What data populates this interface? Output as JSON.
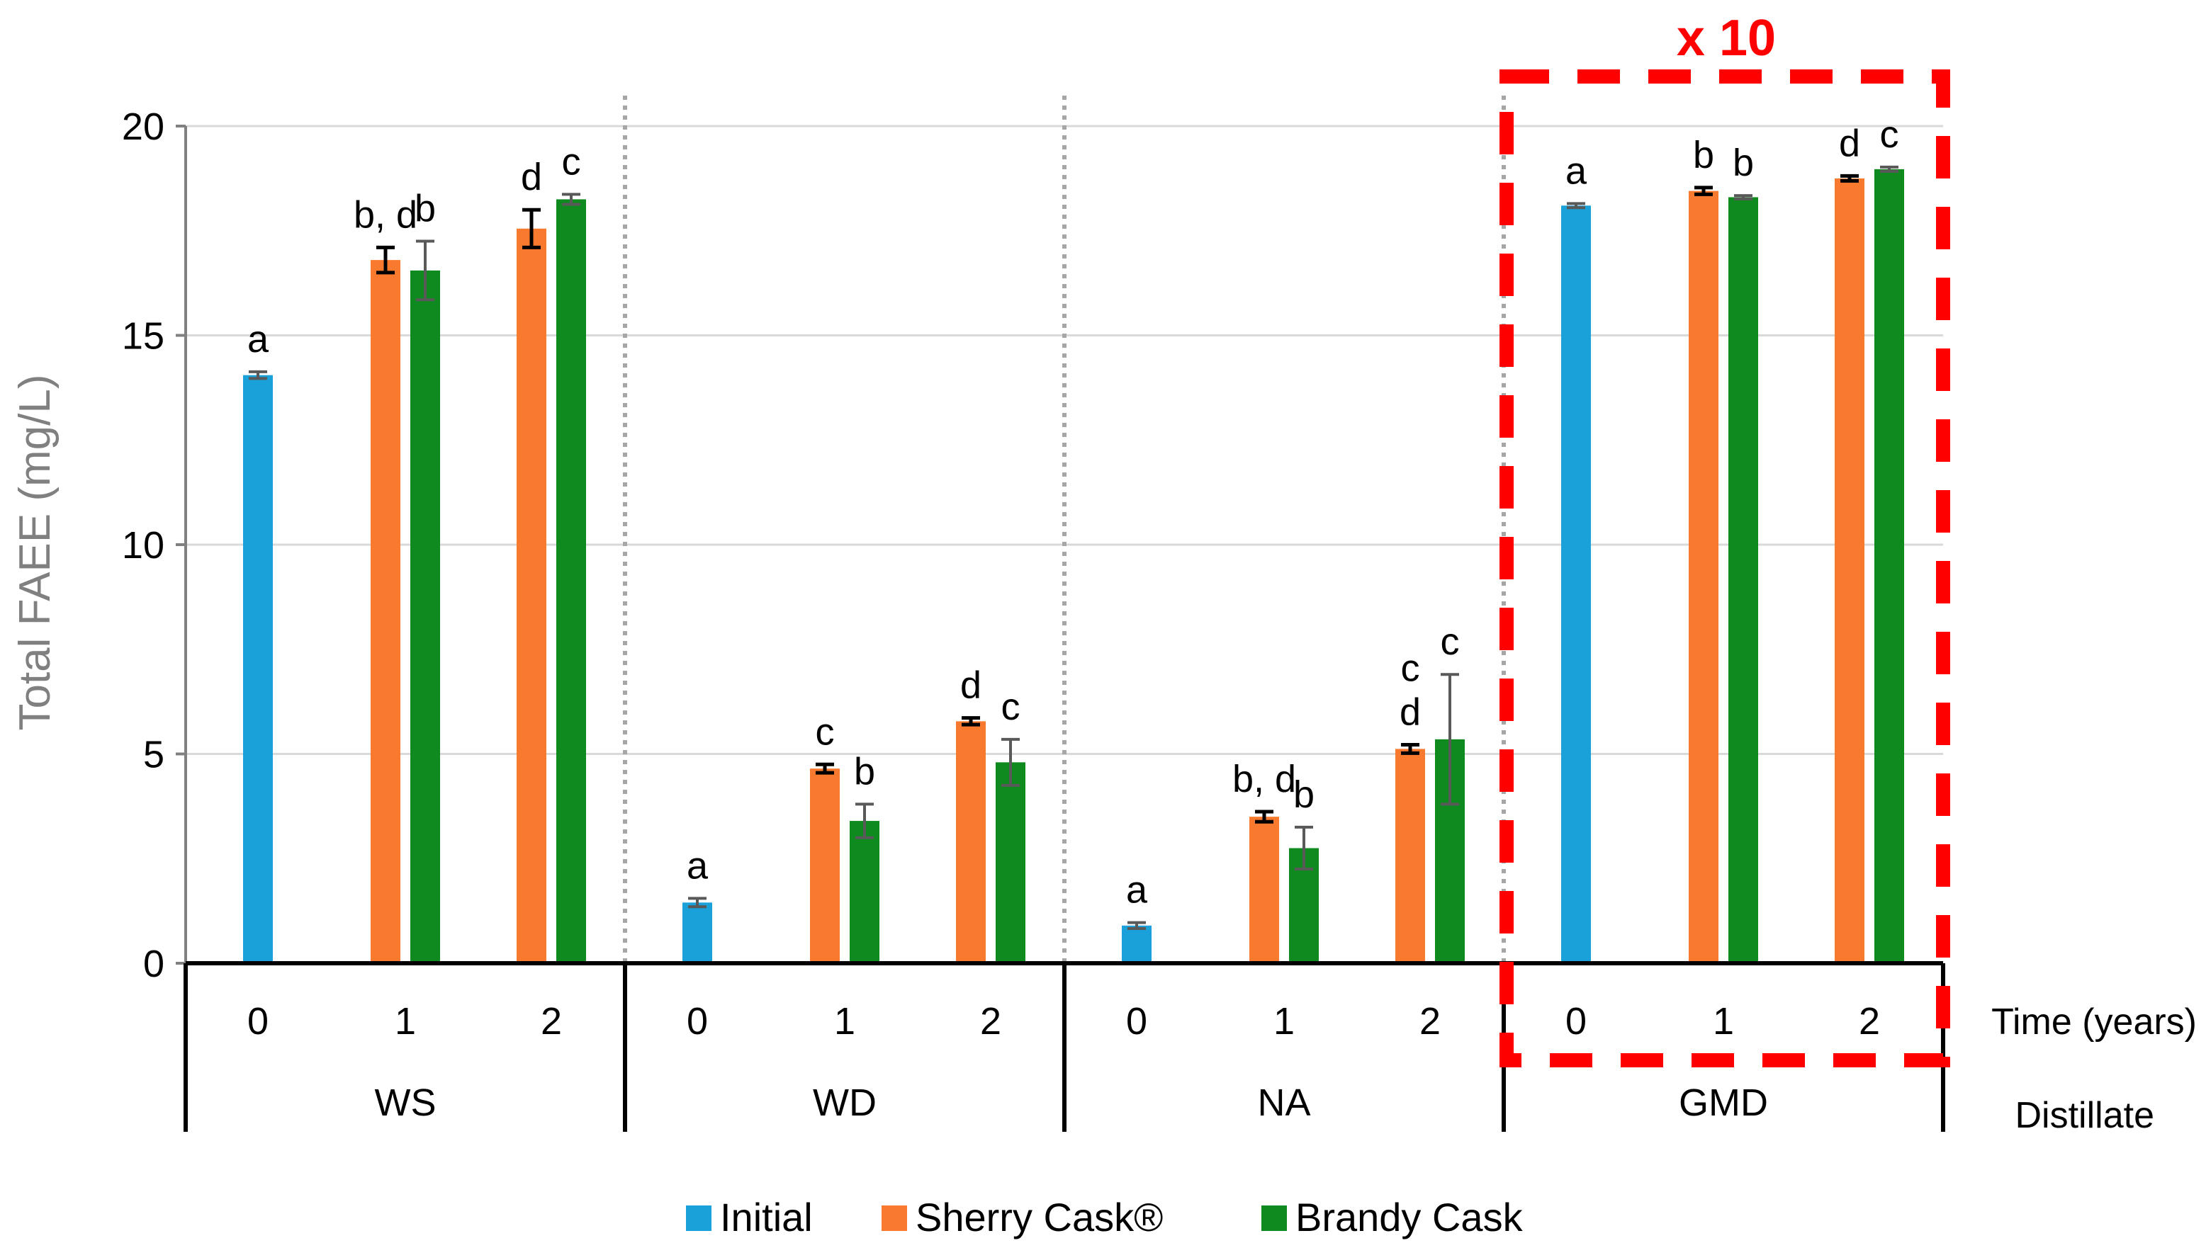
{
  "chart_data": {
    "type": "bar",
    "title": "",
    "ylabel": "Total FAEE (mg/L)",
    "ylim": [
      0,
      20
    ],
    "yticks": [
      0,
      5,
      10,
      15,
      20
    ],
    "grid": true,
    "time_axis_label": "Time (years)",
    "distillate_axis_label": "Distillate",
    "time_labels": [
      "0",
      "1",
      "2"
    ],
    "groups": [
      "WS",
      "WD",
      "NA",
      "GMD"
    ],
    "highlight_label": "x 10",
    "highlight_group": "GMD",
    "series": [
      {
        "name": "Initial",
        "color": "#1BA1DA"
      },
      {
        "name": "Sherry Cask®",
        "color": "#F97A2E"
      },
      {
        "name": "Brandy Cask",
        "color": "#0E8A1E"
      }
    ],
    "bars": [
      {
        "group": "WS",
        "time": "0",
        "series": "Initial",
        "value": 14.05,
        "error": 0.08,
        "letters": [
          "a"
        ]
      },
      {
        "group": "WS",
        "time": "1",
        "series": "Sherry Cask®",
        "value": 16.8,
        "error": 0.3,
        "letters": [
          "b, d"
        ]
      },
      {
        "group": "WS",
        "time": "1",
        "series": "Brandy Cask",
        "value": 16.55,
        "error": 0.7,
        "letters": [
          "b"
        ]
      },
      {
        "group": "WS",
        "time": "2",
        "series": "Sherry Cask®",
        "value": 17.55,
        "error": 0.45,
        "letters": [
          "d"
        ]
      },
      {
        "group": "WS",
        "time": "2",
        "series": "Brandy Cask",
        "value": 18.25,
        "error": 0.12,
        "letters": [
          "c"
        ]
      },
      {
        "group": "WD",
        "time": "0",
        "series": "Initial",
        "value": 1.45,
        "error": 0.1,
        "letters": [
          "a"
        ]
      },
      {
        "group": "WD",
        "time": "1",
        "series": "Sherry Cask®",
        "value": 4.65,
        "error": 0.1,
        "letters": [
          "c"
        ]
      },
      {
        "group": "WD",
        "time": "1",
        "series": "Brandy Cask",
        "value": 3.4,
        "error": 0.4,
        "letters": [
          "b"
        ]
      },
      {
        "group": "WD",
        "time": "2",
        "series": "Sherry Cask®",
        "value": 5.78,
        "error": 0.08,
        "letters": [
          "d"
        ]
      },
      {
        "group": "WD",
        "time": "2",
        "series": "Brandy Cask",
        "value": 4.8,
        "error": 0.55,
        "letters": [
          "c"
        ]
      },
      {
        "group": "NA",
        "time": "0",
        "series": "Initial",
        "value": 0.9,
        "error": 0.07,
        "letters": [
          "a"
        ]
      },
      {
        "group": "NA",
        "time": "1",
        "series": "Sherry Cask®",
        "value": 3.5,
        "error": 0.12,
        "letters": [
          "b, d"
        ]
      },
      {
        "group": "NA",
        "time": "1",
        "series": "Brandy Cask",
        "value": 2.75,
        "error": 0.5,
        "letters": [
          "b"
        ]
      },
      {
        "group": "NA",
        "time": "2",
        "series": "Sherry Cask®",
        "value": 5.12,
        "error": 0.1,
        "letters": [
          "c",
          "d"
        ]
      },
      {
        "group": "NA",
        "time": "2",
        "series": "Brandy Cask",
        "value": 5.35,
        "error": 1.55,
        "letters": [
          "c"
        ]
      },
      {
        "group": "GMD",
        "time": "0",
        "series": "Initial",
        "value": 18.1,
        "error": 0.05,
        "letters": [
          "a"
        ]
      },
      {
        "group": "GMD",
        "time": "1",
        "series": "Sherry Cask®",
        "value": 18.45,
        "error": 0.08,
        "letters": [
          "b"
        ]
      },
      {
        "group": "GMD",
        "time": "1",
        "series": "Brandy Cask",
        "value": 18.3,
        "error": 0.04,
        "letters": [
          "b"
        ]
      },
      {
        "group": "GMD",
        "time": "2",
        "series": "Sherry Cask®",
        "value": 18.75,
        "error": 0.06,
        "letters": [
          "d"
        ]
      },
      {
        "group": "GMD",
        "time": "2",
        "series": "Brandy Cask",
        "value": 18.97,
        "error": 0.05,
        "letters": [
          "c"
        ]
      }
    ]
  }
}
